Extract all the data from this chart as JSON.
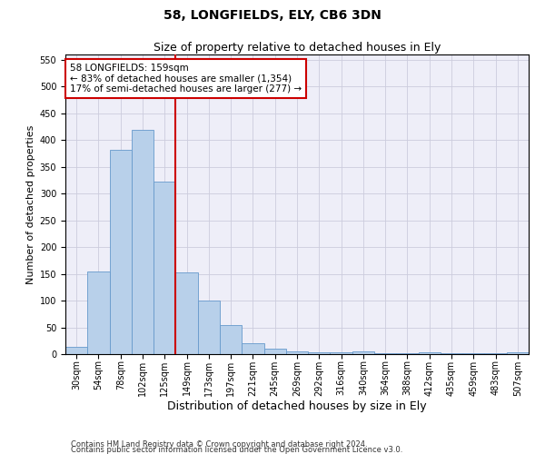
{
  "title": "58, LONGFIELDS, ELY, CB6 3DN",
  "subtitle": "Size of property relative to detached houses in Ely",
  "xlabel": "Distribution of detached houses by size in Ely",
  "ylabel": "Number of detached properties",
  "footnote1": "Contains HM Land Registry data © Crown copyright and database right 2024.",
  "footnote2": "Contains public sector information licensed under the Open Government Licence v3.0.",
  "categories": [
    "30sqm",
    "54sqm",
    "78sqm",
    "102sqm",
    "125sqm",
    "149sqm",
    "173sqm",
    "197sqm",
    "221sqm",
    "245sqm",
    "269sqm",
    "292sqm",
    "316sqm",
    "340sqm",
    "364sqm",
    "388sqm",
    "412sqm",
    "435sqm",
    "459sqm",
    "483sqm",
    "507sqm"
  ],
  "values": [
    13,
    155,
    382,
    420,
    322,
    152,
    100,
    55,
    20,
    10,
    5,
    4,
    4,
    5,
    2,
    2,
    3,
    1,
    1,
    1,
    3
  ],
  "bar_color": "#b8d0ea",
  "bar_edge_color": "#6699cc",
  "vline_color": "#cc0000",
  "vline_x": 4.5,
  "annotation_line1": "58 LONGFIELDS: 159sqm",
  "annotation_line2": "← 83% of detached houses are smaller (1,354)",
  "annotation_line3": "17% of semi-detached houses are larger (277) →",
  "annotation_box_color": "#ffffff",
  "annotation_box_edge_color": "#cc0000",
  "ylim": [
    0,
    560
  ],
  "yticks": [
    0,
    50,
    100,
    150,
    200,
    250,
    300,
    350,
    400,
    450,
    500,
    550
  ],
  "bg_color": "#eeeef8",
  "grid_color": "#ccccdd",
  "title_fontsize": 10,
  "subtitle_fontsize": 9,
  "xlabel_fontsize": 9,
  "ylabel_fontsize": 8,
  "tick_fontsize": 7,
  "annot_fontsize": 7.5,
  "footnote_fontsize": 6
}
